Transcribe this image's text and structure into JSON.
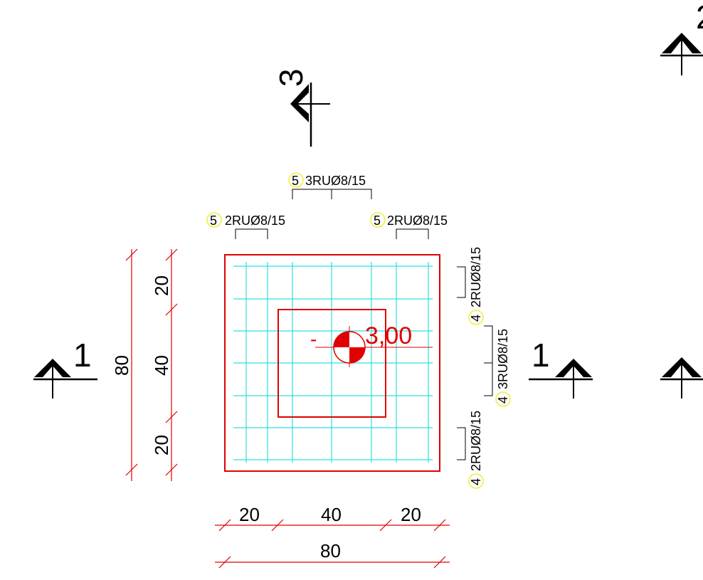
{
  "section_marks": {
    "left": "1",
    "right": "1",
    "top": "3",
    "top_right_partial": "2"
  },
  "rebar_labels": {
    "top_center": {
      "bubble": "5",
      "text": "3RUØ8/15"
    },
    "top_left": {
      "bubble": "5",
      "text": "2RUØ8/15"
    },
    "top_right": {
      "bubble": "5",
      "text": "2RUØ8/15"
    },
    "right_upper": {
      "bubble": "4",
      "text": "2RUØ8/15"
    },
    "right_middle": {
      "bubble": "4",
      "text": "3RUØ8/15"
    },
    "right_lower": {
      "bubble": "4",
      "text": "2RUØ8/15"
    }
  },
  "level_mark": {
    "sign": "-",
    "value": "3,00"
  },
  "dimensions": {
    "vertical_total": "80",
    "vertical_parts": [
      "20",
      "40",
      "20"
    ],
    "horizontal_total": "80",
    "horizontal_parts": [
      "20",
      "40",
      "20"
    ]
  },
  "colors": {
    "outline": "#e00000",
    "mesh": "#33dddd",
    "bubble": "#f2ee3c",
    "ink": "#000000"
  }
}
